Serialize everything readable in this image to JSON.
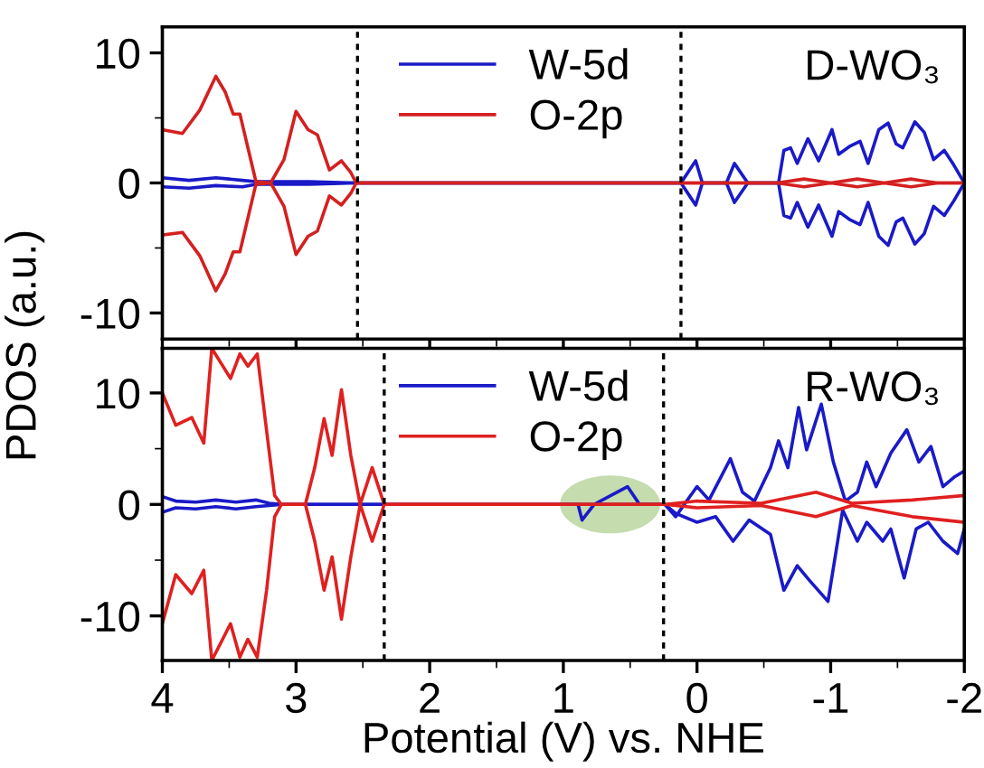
{
  "chart_data": [
    {
      "type": "line",
      "ylabel": "PDOS (a.u.)",
      "xlim": [
        4,
        -2
      ],
      "xticks": [
        4,
        3,
        2,
        1,
        0,
        -1,
        -2
      ],
      "ylim": [
        -12,
        12
      ],
      "yticks": [
        -10,
        0,
        10
      ],
      "tick_labels": "y",
      "legend": "top",
      "grid": false,
      "annotations": [
        "D-WO₃"
      ],
      "ref_lines": [
        {
          "axis": "x",
          "value": 2.54,
          "color": "#000000",
          "line_style": "dotted"
        },
        {
          "axis": "x",
          "value": 0.12,
          "color": "#000000",
          "line_style": "dotted"
        }
      ],
      "series": [
        {
          "name": "W-5d",
          "color": "#1a1ac8",
          "x": [
            4,
            3.8,
            3.6,
            3.4,
            3.3,
            3.1,
            2.9,
            2.55,
            0.12,
            0.01,
            -0.04,
            -0.22,
            -0.28,
            -0.38,
            -0.61,
            -0.65,
            -0.7,
            -0.75,
            -0.83,
            -0.91,
            -1.01,
            -1.06,
            -1.14,
            -1.22,
            -1.28,
            -1.36,
            -1.43,
            -1.49,
            -1.54,
            -1.63,
            -1.7,
            -1.77,
            -1.85,
            -1.92,
            -2
          ],
          "values": [
            0.4,
            0.2,
            0.4,
            0.2,
            0.1,
            0.1,
            0.1,
            0,
            0,
            1.7,
            0,
            0,
            1.5,
            0,
            0,
            2.5,
            2.7,
            1.5,
            3.4,
            1.7,
            4.1,
            2.2,
            2.8,
            3.2,
            1.5,
            4.1,
            4.6,
            3.0,
            2.7,
            4.7,
            3.9,
            1.8,
            2.5,
            1.4,
            0
          ]
        },
        {
          "color": "#1a1ac8",
          "x": [
            4,
            3.8,
            3.6,
            3.4,
            3.3,
            3.1,
            2.9,
            2.55,
            0.12,
            0.01,
            -0.04,
            -0.22,
            -0.28,
            -0.38,
            -0.61,
            -0.65,
            -0.7,
            -0.75,
            -0.83,
            -0.91,
            -1.01,
            -1.06,
            -1.14,
            -1.22,
            -1.28,
            -1.36,
            -1.43,
            -1.49,
            -1.54,
            -1.63,
            -1.7,
            -1.77,
            -1.85,
            -1.92,
            -2
          ],
          "values": [
            -0.3,
            -0.4,
            -0.2,
            -0.3,
            -0.1,
            -0.1,
            -0.1,
            0,
            0,
            -1.7,
            0,
            0,
            -1.5,
            0,
            0,
            -2.5,
            -2.7,
            -1.5,
            -3.4,
            -1.7,
            -4.1,
            -2.2,
            -2.8,
            -3.2,
            -1.5,
            -4.1,
            -4.8,
            -3.0,
            -2.7,
            -4.7,
            -3.9,
            -1.8,
            -2.5,
            -1.4,
            0
          ]
        },
        {
          "name": "O-2p",
          "color": "#d42020",
          "x": [
            4,
            3.85,
            3.72,
            3.6,
            3.53,
            3.47,
            3.42,
            3.3,
            3.19,
            3.09,
            3.0,
            2.91,
            2.84,
            2.75,
            2.66,
            2.59,
            2.55,
            0.12,
            -0.6,
            -0.8,
            -1.0,
            -1.2,
            -1.4,
            -1.6,
            -1.8,
            -2
          ],
          "values": [
            4.1,
            3.8,
            5.6,
            8.2,
            7.0,
            5.3,
            5.3,
            0.1,
            0,
            1.8,
            5.5,
            4.1,
            3.7,
            1.0,
            1.7,
            0.8,
            0,
            0,
            0,
            0.3,
            0,
            0.3,
            0,
            0.3,
            0,
            0
          ]
        },
        {
          "color": "#d42020",
          "x": [
            4,
            3.85,
            3.72,
            3.6,
            3.53,
            3.47,
            3.42,
            3.3,
            3.19,
            3.09,
            3.0,
            2.91,
            2.84,
            2.75,
            2.66,
            2.59,
            2.55,
            0.12,
            -0.6,
            -0.8,
            -1.0,
            -1.2,
            -1.4,
            -1.6,
            -1.8,
            -2
          ],
          "values": [
            -4.0,
            -3.8,
            -5.6,
            -8.3,
            -7.0,
            -5.3,
            -5.3,
            -0.1,
            0,
            -1.8,
            -5.5,
            -4.1,
            -3.7,
            -1.0,
            -1.7,
            -0.8,
            0,
            0,
            0,
            -0.3,
            0,
            -0.3,
            0,
            -0.3,
            0,
            0
          ]
        }
      ]
    },
    {
      "type": "line",
      "xlabel": "Potential (V) vs. NHE",
      "xlim": [
        4,
        -2
      ],
      "xticks": [
        4,
        3,
        2,
        1,
        0,
        -1,
        -2
      ],
      "ylim": [
        -14,
        14
      ],
      "yticks": [
        -10,
        0,
        10
      ],
      "legend": "top",
      "grid": false,
      "annotations": [
        "R-WO₃"
      ],
      "ref_lines": [
        {
          "axis": "x",
          "value": 2.34,
          "color": "#000000",
          "line_style": "dotted"
        },
        {
          "axis": "x",
          "value": 0.25,
          "color": "#000000",
          "line_style": "dotted"
        }
      ],
      "series": [
        {
          "name": "W-5d",
          "color": "#1a1ac8",
          "x": [
            4,
            3.9,
            3.75,
            3.6,
            3.45,
            3.3,
            3.2,
            3.1,
            0.89,
            0.86,
            0.77,
            0.52,
            0.43,
            0.24,
            0.16,
            0,
            -0.09,
            -0.25,
            -0.34,
            -0.43,
            -0.55,
            -0.61,
            -0.68,
            -0.76,
            -0.82,
            -0.93,
            -1.02,
            -1.11,
            -1.2,
            -1.27,
            -1.34,
            -1.45,
            -1.57,
            -1.66,
            -1.75,
            -1.84,
            -1.93,
            -2
          ],
          "values": [
            0.7,
            0.3,
            0.2,
            0.4,
            0.2,
            0.4,
            0.1,
            0,
            0,
            -1.4,
            0,
            1.6,
            0,
            0,
            -1.1,
            1.6,
            0.4,
            4.1,
            1.1,
            0.3,
            3.3,
            5.7,
            3.3,
            8.7,
            4.9,
            9.0,
            3.8,
            0.3,
            1.1,
            3.8,
            1.6,
            4.6,
            6.7,
            3.8,
            5.2,
            1.6,
            2.5,
            3.0
          ]
        },
        {
          "color": "#1a1ac8",
          "x": [
            4,
            3.9,
            3.75,
            3.6,
            3.45,
            3.3,
            3.2,
            3.1,
            0.24,
            0.16,
            0,
            -0.14,
            -0.27,
            -0.39,
            -0.55,
            -0.65,
            -0.75,
            -0.84,
            -0.98,
            -1.09,
            -1.2,
            -1.27,
            -1.39,
            -1.45,
            -1.55,
            -1.64,
            -1.73,
            -1.84,
            -1.95,
            -2
          ],
          "values": [
            -0.7,
            -0.3,
            -0.4,
            -0.2,
            -0.4,
            -0.2,
            -0.1,
            0,
            0,
            -0.8,
            -1.6,
            -1.1,
            -3.3,
            -1.4,
            -2.7,
            -7.7,
            -5.5,
            -6.8,
            -8.7,
            -0.5,
            -3.3,
            -1.6,
            -3.3,
            -2.2,
            -6.6,
            -2.2,
            -1.6,
            -3.3,
            -4.4,
            -2.2
          ]
        },
        {
          "name": "O-2p",
          "color": "#e02020",
          "x": [
            4,
            3.9,
            3.78,
            3.69,
            3.63,
            3.49,
            3.42,
            3.36,
            3.29,
            3.22,
            3.16,
            3.11,
            2.93,
            2.86,
            2.79,
            2.73,
            2.66,
            2.59,
            2.52,
            2.43,
            2.34,
            0.24,
            0,
            -0.48,
            -0.89,
            -1.16,
            -1.61,
            -2
          ],
          "values": [
            10,
            7.1,
            7.8,
            5.5,
            14,
            11.3,
            13.5,
            12.4,
            13.5,
            6.6,
            0.8,
            0,
            0,
            3.3,
            7.7,
            4.4,
            10.3,
            4.4,
            0,
            3.3,
            0,
            0,
            0.3,
            0.1,
            1.1,
            0.1,
            0.4,
            0.8
          ]
        },
        {
          "color": "#e02020",
          "x": [
            4,
            3.9,
            3.78,
            3.69,
            3.63,
            3.49,
            3.42,
            3.36,
            3.29,
            3.22,
            3.16,
            3.11,
            2.93,
            2.86,
            2.79,
            2.73,
            2.66,
            2.59,
            2.52,
            2.43,
            2.34,
            0.24,
            0,
            -0.48,
            -0.89,
            -1.16,
            -1.61,
            -2
          ],
          "values": [
            -10.7,
            -6.3,
            -8.0,
            -5.9,
            -14,
            -10.7,
            -13.7,
            -12.1,
            -13.7,
            -7.7,
            -1.1,
            0,
            0,
            -3.3,
            -7.7,
            -4.7,
            -10.3,
            -4.7,
            0,
            -3.3,
            0,
            0,
            -0.3,
            -0.1,
            -1.1,
            -0.1,
            -1.1,
            -1.6
          ]
        }
      ]
    }
  ]
}
